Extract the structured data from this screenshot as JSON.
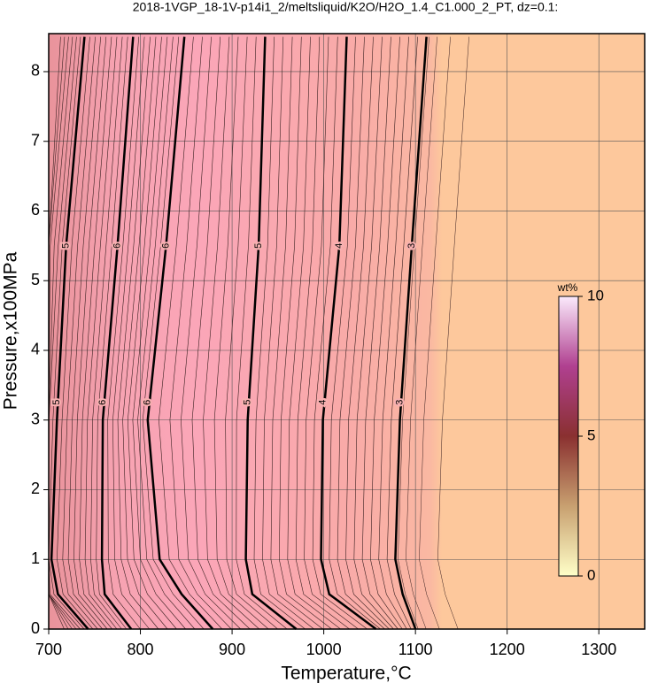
{
  "chart_data": {
    "type": "contour",
    "title": "2018-1VGP_18-1V-p14i1_2/meltsliquid/K2O/H2O_1.4_C1.000_2_PT, dz=0.1:",
    "xlabel": "Temperature,°C",
    "ylabel": "Pressure,x100MPa",
    "xlim": [
      700,
      1350
    ],
    "ylim": [
      0,
      8.5
    ],
    "xticks": [
      700,
      800,
      900,
      1000,
      1100,
      1200,
      1300
    ],
    "yticks": [
      0,
      1,
      2,
      3,
      4,
      5,
      6,
      7,
      8
    ],
    "grid": true,
    "contours": [
      {
        "level": 5,
        "x": [
          743,
          710,
          703,
          709,
          719,
          739
        ],
        "y": [
          0,
          0.5,
          1,
          3,
          5.5,
          8.5
        ]
      },
      {
        "level": 6,
        "x": [
          790,
          761,
          758,
          759,
          775,
          792
        ],
        "y": [
          0,
          0.5,
          1,
          3,
          5.5,
          8.5
        ]
      },
      {
        "level": 6,
        "x": [
          879,
          845,
          821,
          808,
          828,
          848
        ],
        "y": [
          0,
          0.5,
          1,
          3,
          5.5,
          8.5
        ]
      },
      {
        "level": 5,
        "x": [
          970,
          922,
          915,
          917,
          929,
          936
        ],
        "y": [
          0,
          0.5,
          1,
          3,
          5.5,
          8.5
        ]
      },
      {
        "level": 4,
        "x": [
          1057,
          1006,
          997,
          999,
          1017,
          1025
        ],
        "y": [
          0,
          0.5,
          1,
          3,
          5.5,
          8.5
        ]
      },
      {
        "level": 3,
        "x": [
          1100,
          1086,
          1078,
          1083,
          1096,
          1112
        ],
        "y": [
          0,
          0.5,
          1,
          3,
          5.5,
          8.5
        ]
      }
    ],
    "colorbar": {
      "label": "wt%",
      "lim": [
        0,
        10
      ],
      "ticks": [
        0,
        5,
        10
      ]
    }
  }
}
